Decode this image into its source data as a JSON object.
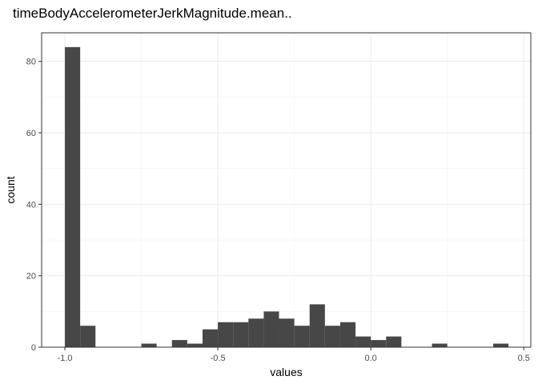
{
  "chart_data": {
    "type": "bar",
    "title": "timeBodyAccelerometerJerkMagnitude.mean..",
    "xlabel": "values",
    "ylabel": "count",
    "xlim": [
      -1.076,
      0.523
    ],
    "ylim": [
      0,
      88
    ],
    "x_ticks": [
      -1.0,
      -0.5,
      0.0,
      0.5
    ],
    "x_tick_labels": [
      "-1.0",
      "-0.5",
      "0.0",
      "0.5"
    ],
    "y_ticks": [
      0,
      20,
      40,
      60,
      80
    ],
    "y_tick_labels": [
      "0",
      "20",
      "40",
      "60",
      "80"
    ],
    "grid": true,
    "bins": [
      {
        "x0": -1.0,
        "x1": -0.95,
        "count": 84
      },
      {
        "x0": -0.95,
        "x1": -0.9,
        "count": 6
      },
      {
        "x0": -0.9,
        "x1": -0.85,
        "count": 0
      },
      {
        "x0": -0.85,
        "x1": -0.8,
        "count": 0
      },
      {
        "x0": -0.8,
        "x1": -0.75,
        "count": 0
      },
      {
        "x0": -0.75,
        "x1": -0.7,
        "count": 1
      },
      {
        "x0": -0.7,
        "x1": -0.65,
        "count": 0
      },
      {
        "x0": -0.65,
        "x1": -0.6,
        "count": 2
      },
      {
        "x0": -0.6,
        "x1": -0.55,
        "count": 1
      },
      {
        "x0": -0.55,
        "x1": -0.5,
        "count": 5
      },
      {
        "x0": -0.5,
        "x1": -0.45,
        "count": 7
      },
      {
        "x0": -0.45,
        "x1": -0.4,
        "count": 7
      },
      {
        "x0": -0.4,
        "x1": -0.35,
        "count": 8
      },
      {
        "x0": -0.35,
        "x1": -0.3,
        "count": 10
      },
      {
        "x0": -0.3,
        "x1": -0.25,
        "count": 8
      },
      {
        "x0": -0.25,
        "x1": -0.2,
        "count": 6
      },
      {
        "x0": -0.2,
        "x1": -0.15,
        "count": 12
      },
      {
        "x0": -0.15,
        "x1": -0.1,
        "count": 6
      },
      {
        "x0": -0.1,
        "x1": -0.05,
        "count": 7
      },
      {
        "x0": -0.05,
        "x1": 0.0,
        "count": 3
      },
      {
        "x0": 0.0,
        "x1": 0.05,
        "count": 2
      },
      {
        "x0": 0.05,
        "x1": 0.1,
        "count": 3
      },
      {
        "x0": 0.1,
        "x1": 0.15,
        "count": 0
      },
      {
        "x0": 0.15,
        "x1": 0.2,
        "count": 0
      },
      {
        "x0": 0.2,
        "x1": 0.25,
        "count": 1
      },
      {
        "x0": 0.25,
        "x1": 0.3,
        "count": 0
      },
      {
        "x0": 0.3,
        "x1": 0.35,
        "count": 0
      },
      {
        "x0": 0.35,
        "x1": 0.4,
        "count": 0
      },
      {
        "x0": 0.4,
        "x1": 0.45,
        "count": 1
      }
    ],
    "colors": {
      "bar": "#474747",
      "grid_major": "#ebebeb",
      "grid_minor": "#f2f2f2",
      "panel_border": "#333333",
      "text": "#000000",
      "tick_text": "#4d4d4d"
    }
  }
}
